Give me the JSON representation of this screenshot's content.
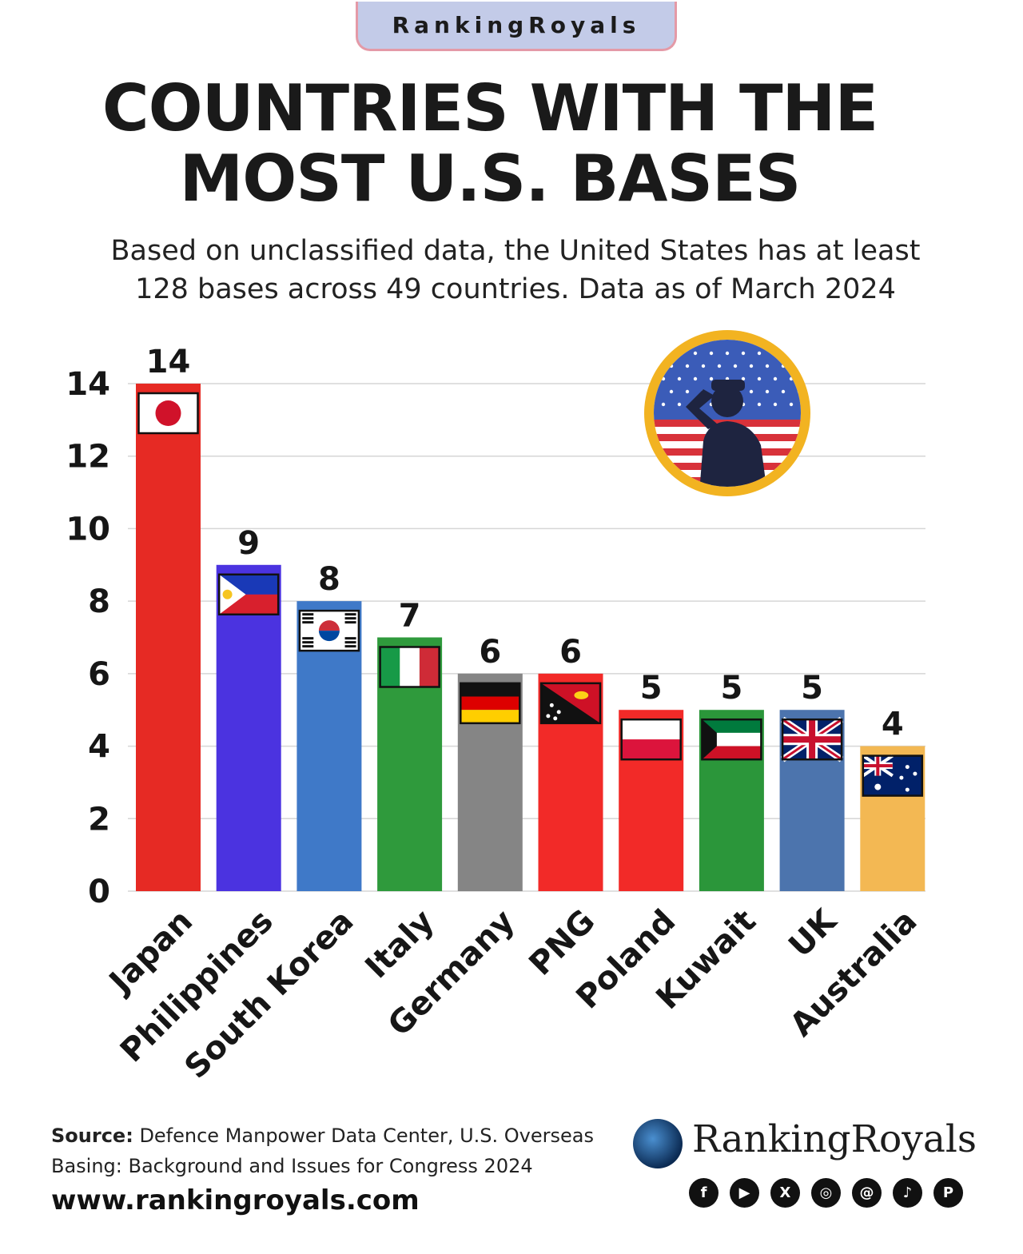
{
  "brand": "RankingRoyals",
  "title_line1": "COUNTRIES WITH THE",
  "title_line2": "MOST U.S. BASES",
  "subtitle_line1": "Based on unclassified data, the United States has at least",
  "subtitle_line2": "128 bases across 49 countries. Data as of March 2024",
  "chart_data": {
    "type": "bar",
    "title": "COUNTRIES WITH THE MOST U.S. BASES",
    "xlabel": "",
    "ylabel": "",
    "ylim": [
      0,
      14
    ],
    "yticks": [
      0,
      2,
      4,
      6,
      8,
      10,
      12,
      14
    ],
    "grid": true,
    "categories": [
      "Japan",
      "Philippines",
      "South Korea",
      "Italy",
      "Germany",
      "PNG",
      "Poland",
      "Kuwait",
      "UK",
      "Australia"
    ],
    "values": [
      14,
      9,
      8,
      7,
      6,
      6,
      5,
      5,
      5,
      4
    ],
    "colors": [
      "#e62a24",
      "#4b33e0",
      "#3f79c8",
      "#2f9a3c",
      "#858585",
      "#f22a28",
      "#f22a28",
      "#2b963a",
      "#4c74ad",
      "#f3b853"
    ]
  },
  "icons": {
    "badge": "saluting-soldier-badge-icon",
    "logo": "globe-logo-icon",
    "social": [
      "facebook-icon",
      "youtube-icon",
      "x-icon",
      "instagram-icon",
      "threads-icon",
      "tiktok-icon",
      "pinterest-icon"
    ]
  },
  "footer": {
    "source_label": "Source:",
    "source_line1": "Defence Manpower Data Center, U.S. Overseas",
    "source_line2": "Basing: Background and Issues for Congress 2024",
    "website": "www.rankingroyals.com",
    "logo_text": "RankingRoyals"
  }
}
